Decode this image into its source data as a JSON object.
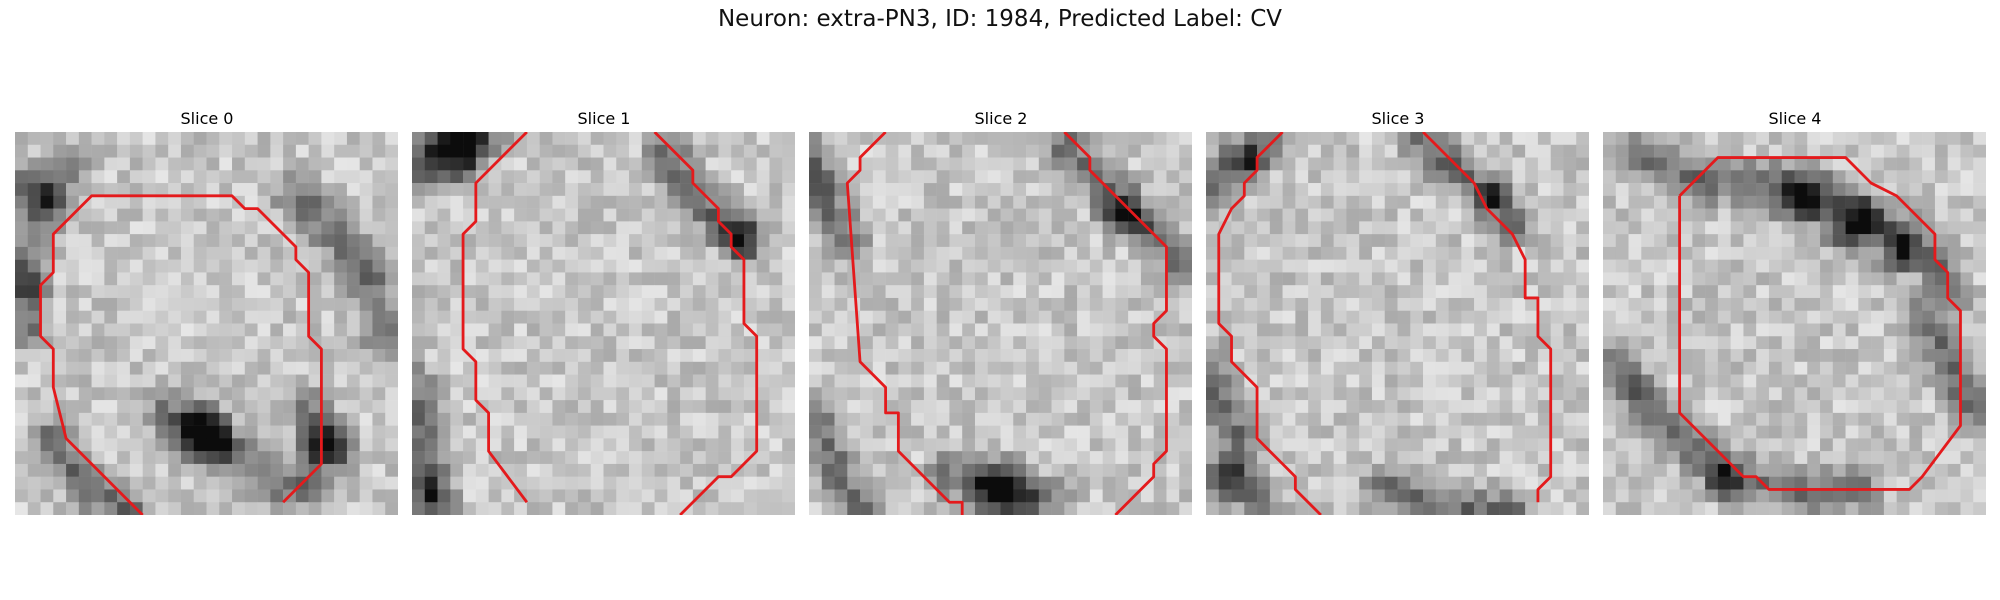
{
  "figure": {
    "title": "Neuron: extra-PN3, ID: 1984, Predicted Label: CV",
    "contour_color": "#e41a1c"
  },
  "panels": [
    {
      "title": "Slice 0"
    },
    {
      "title": "Slice 1"
    },
    {
      "title": "Slice 2"
    },
    {
      "title": "Slice 3"
    },
    {
      "title": "Slice 4"
    }
  ]
}
